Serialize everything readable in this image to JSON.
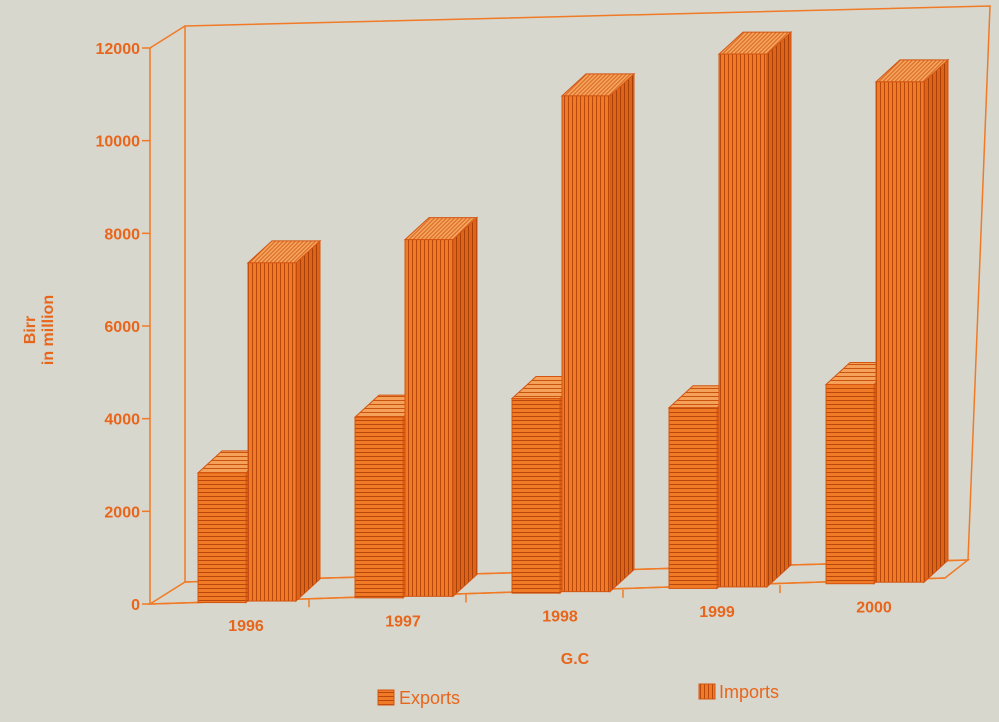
{
  "colors": {
    "accent": "#f07a26",
    "accent_dark": "#d45410",
    "accent_light": "#f5a15a",
    "background": "#d8d7cd",
    "text": "#e8661c"
  },
  "chart_data": {
    "type": "bar",
    "style": "3d-clustered-column",
    "categories": [
      "1996",
      "1997",
      "1998",
      "1999",
      "2000"
    ],
    "series": [
      {
        "name": "Exports",
        "pattern": "horizontal-lines",
        "values": [
          2800,
          3900,
          4200,
          3900,
          4300
        ]
      },
      {
        "name": "Imports",
        "pattern": "vertical-lines",
        "values": [
          7300,
          7700,
          10700,
          11500,
          10800
        ]
      }
    ],
    "xlabel": "G.C",
    "ylabel_line1": "Birr",
    "ylabel_line2": "in million",
    "yticks": [
      "0",
      "2000",
      "4000",
      "6000",
      "8000",
      "10000",
      "12000"
    ],
    "ylim": [
      0,
      12000
    ],
    "grid": false,
    "legend_position": "bottom"
  }
}
